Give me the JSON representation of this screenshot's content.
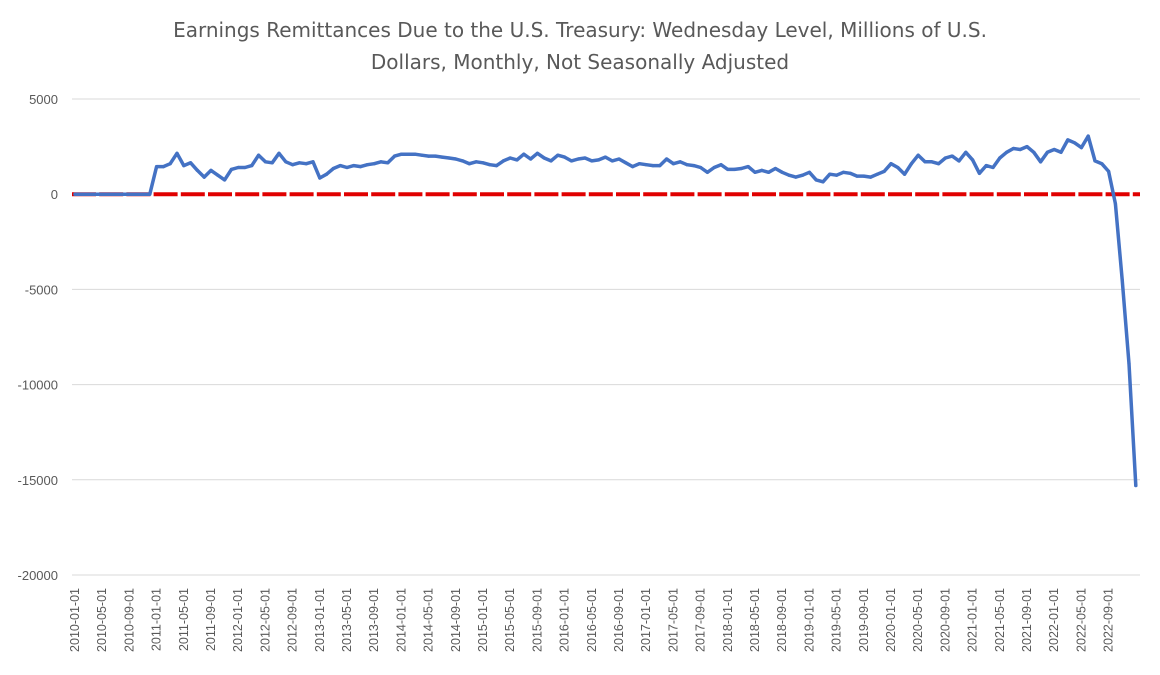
{
  "chart_data": {
    "type": "line",
    "title_lines": [
      "Earnings Remittances Due to the U.S. Treasury: Wednesday Level, Millions of U.S.",
      "Dollars, Monthly, Not Seasonally Adjusted"
    ],
    "ylim": [
      -20000,
      5000
    ],
    "yticks": [
      5000,
      0,
      -5000,
      -10000,
      -15000,
      -20000
    ],
    "grid": true,
    "legend": "none",
    "x_start": "2010-01",
    "x_tick_labels": [
      "2010-01-01",
      "2010-05-01",
      "2010-09-01",
      "2011-01-01",
      "2011-05-01",
      "2011-09-01",
      "2012-01-01",
      "2012-05-01",
      "2012-09-01",
      "2013-01-01",
      "2013-05-01",
      "2013-09-01",
      "2014-01-01",
      "2014-05-01",
      "2014-09-01",
      "2015-01-01",
      "2015-05-01",
      "2015-09-01",
      "2016-01-01",
      "2016-05-01",
      "2016-09-01",
      "2017-01-01",
      "2017-05-01",
      "2017-09-01",
      "2018-01-01",
      "2018-05-01",
      "2018-09-01",
      "2019-01-01",
      "2019-05-01",
      "2019-09-01",
      "2020-01-01",
      "2020-05-01",
      "2020-09-01",
      "2021-01-01",
      "2021-05-01",
      "2021-09-01",
      "2022-01-01",
      "2022-05-01",
      "2022-09-01"
    ],
    "series": [
      {
        "color": "#4472C4",
        "values": [
          0,
          0,
          0,
          0,
          0,
          0,
          0,
          0,
          0,
          0,
          0,
          0,
          1450,
          1450,
          1600,
          2150,
          1500,
          1650,
          1250,
          900,
          1250,
          1000,
          750,
          1300,
          1400,
          1400,
          1500,
          2050,
          1700,
          1650,
          2150,
          1700,
          1550,
          1650,
          1600,
          1700,
          850,
          1050,
          1350,
          1500,
          1400,
          1500,
          1450,
          1550,
          1600,
          1700,
          1650,
          2000,
          2100,
          2100,
          2100,
          2050,
          2000,
          2000,
          1950,
          1900,
          1850,
          1750,
          1600,
          1700,
          1650,
          1550,
          1500,
          1750,
          1900,
          1800,
          2100,
          1850,
          2150,
          1900,
          1750,
          2050,
          1950,
          1750,
          1850,
          1900,
          1750,
          1800,
          1950,
          1750,
          1850,
          1650,
          1450,
          1600,
          1550,
          1500,
          1500,
          1850,
          1600,
          1700,
          1550,
          1500,
          1400,
          1150,
          1400,
          1550,
          1300,
          1300,
          1350,
          1450,
          1150,
          1250,
          1150,
          1350,
          1150,
          1000,
          900,
          1000,
          1150,
          750,
          650,
          1050,
          1000,
          1150,
          1100,
          950,
          950,
          900,
          1050,
          1200,
          1600,
          1400,
          1050,
          1600,
          2050,
          1700,
          1700,
          1600,
          1900,
          2000,
          1750,
          2200,
          1800,
          1100,
          1500,
          1400,
          1900,
          2200,
          2400,
          2350,
          2500,
          2200,
          1700,
          2200,
          2350,
          2200,
          2850,
          2700,
          2450,
          3050,
          1750,
          1600,
          1200,
          -500,
          -4500,
          -8900,
          -15300
        ]
      },
      {
        "color": "#E00000",
        "dashed_line": true,
        "values_constant": 0
      }
    ]
  }
}
